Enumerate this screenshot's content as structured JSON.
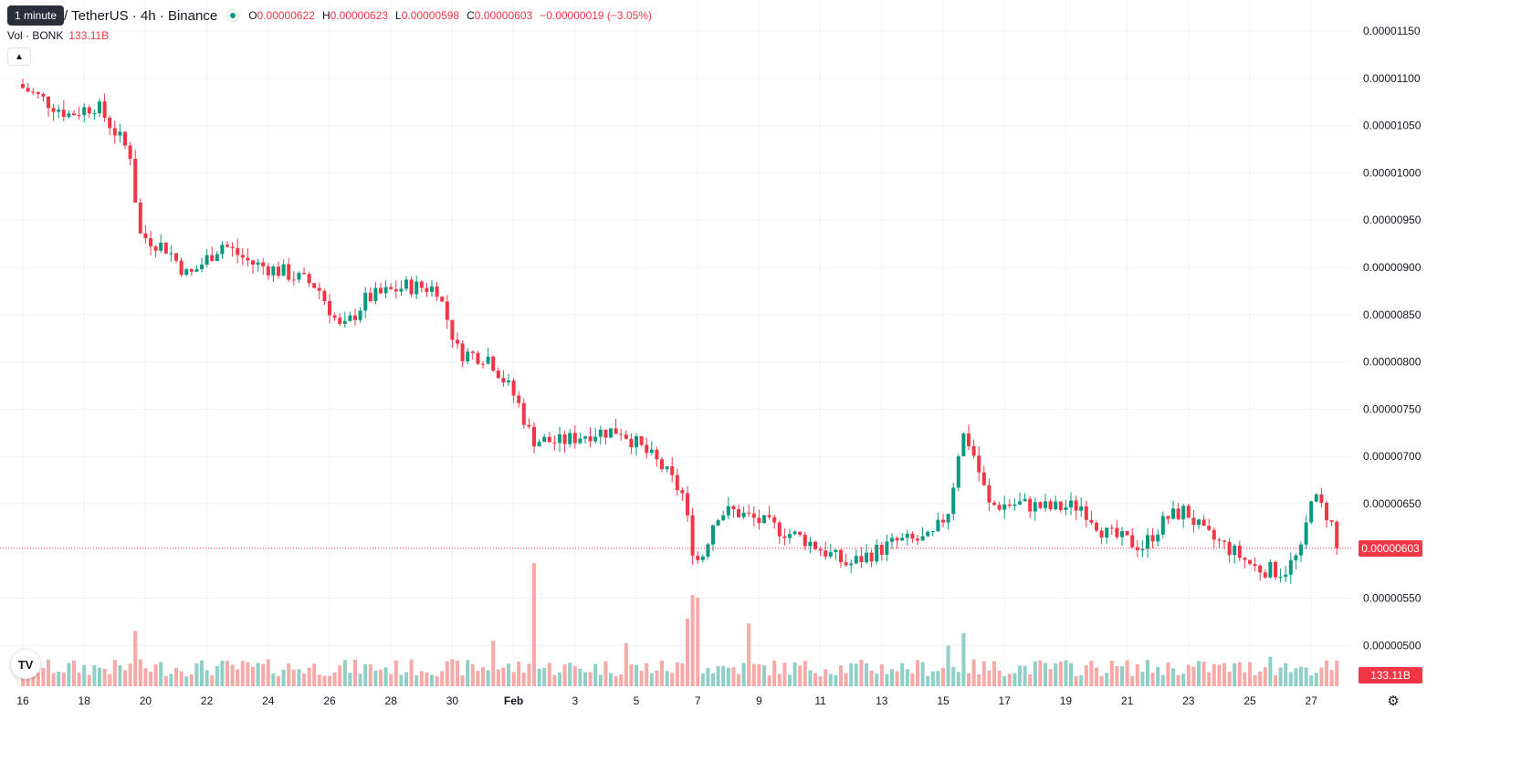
{
  "header": {
    "tooltip": "1 minute",
    "symbol": "/ TetherUS · 4h · Binance",
    "ohlc": [
      {
        "k": "O",
        "v": "0.00000622"
      },
      {
        "k": "H",
        "v": "0.00000623"
      },
      {
        "k": "L",
        "v": "0.00000598"
      },
      {
        "k": "C",
        "v": "0.00000603"
      },
      {
        "k": "",
        "v": "−0.00000019 (−3.05%)"
      }
    ],
    "volume_label": "Vol · BONK",
    "volume_value": "133.11B",
    "collapse_icon": "chevron-up-icon"
  },
  "price_axis": {
    "labels": [
      "0.00001150",
      "0.00001100",
      "0.00001050",
      "0.00001000",
      "0.00000950",
      "0.00000900",
      "0.00000850",
      "0.00000800",
      "0.00000750",
      "0.00000700",
      "0.00000650",
      "0.00000600",
      "0.00000550",
      "0.00000500"
    ]
  },
  "time_axis": {
    "labels": [
      "16",
      "18",
      "20",
      "22",
      "24",
      "26",
      "28",
      "30",
      "Feb",
      "3",
      "5",
      "7",
      "9",
      "11",
      "13",
      "15",
      "17",
      "19",
      "21",
      "23",
      "25",
      "27"
    ]
  },
  "last_price_tag": "0.00000603",
  "volume_tag": "133.11B",
  "icons": {
    "logo": "tradingview-logo-icon",
    "settings": "gear-icon"
  },
  "colors": {
    "up": "#089981",
    "down": "#f23645",
    "up_volume": "#8fcfc6",
    "down_volume": "#f7a9a7",
    "grid": "#f0f3fa"
  },
  "chart_data": {
    "type": "candlestick",
    "ylim": [
      4.7e-06,
      1.155e-05
    ],
    "x_labels": [
      "16",
      "18",
      "20",
      "22",
      "24",
      "26",
      "28",
      "30",
      "Feb",
      "3",
      "5",
      "7",
      "9",
      "11",
      "13",
      "15",
      "17",
      "19",
      "21",
      "23",
      "25",
      "27"
    ],
    "close_anchors": [
      [
        0,
        1.09e-05
      ],
      [
        1.5,
        1.062e-05
      ],
      [
        2.4,
        1.072e-05
      ],
      [
        3.5,
        1.02e-05
      ],
      [
        3.8,
        9.35e-06
      ],
      [
        4.7,
        9.2e-06
      ],
      [
        5.4,
        8.9e-06
      ],
      [
        6.5,
        9.25e-06
      ],
      [
        7.4,
        9.05e-06
      ],
      [
        8.5,
        8.95e-06
      ],
      [
        9.6,
        8.8e-06
      ],
      [
        10.4,
        8.32e-06
      ],
      [
        11.2,
        8.67e-06
      ],
      [
        12.5,
        8.8e-06
      ],
      [
        13.5,
        8.78e-06
      ],
      [
        14.2,
        8.1e-06
      ],
      [
        15.2,
        8.05e-06
      ],
      [
        16.1,
        7.6e-06
      ],
      [
        16.6,
        7.18e-06
      ],
      [
        17.5,
        7.15e-06
      ],
      [
        18.5,
        7.25e-06
      ],
      [
        19.5,
        7.28e-06
      ],
      [
        20.8,
        6.9e-06
      ],
      [
        21.5,
        6.6e-06
      ],
      [
        21.9,
        5.92e-06
      ],
      [
        22.1,
        5.9e-06
      ],
      [
        22.6,
        6.4e-06
      ],
      [
        23.2,
        6.42e-06
      ],
      [
        24.5,
        6.25e-06
      ],
      [
        25.5,
        6.12e-06
      ],
      [
        26.9,
        5.85e-06
      ],
      [
        27.5,
        5.95e-06
      ],
      [
        28.5,
        6.1e-06
      ],
      [
        29.6,
        6.12e-06
      ],
      [
        30.2,
        6.45e-06
      ],
      [
        30.6,
        7.25e-06
      ],
      [
        30.9,
        7.12e-06
      ],
      [
        31.5,
        6.48e-06
      ],
      [
        32.5,
        6.5e-06
      ],
      [
        33.5,
        6.45e-06
      ],
      [
        34.5,
        6.48e-06
      ],
      [
        35.3,
        6.18e-06
      ],
      [
        36.5,
        6.05e-06
      ],
      [
        37.3,
        6.35e-06
      ],
      [
        37.9,
        6.43e-06
      ],
      [
        38.5,
        6.18e-06
      ],
      [
        39.3,
        6.03e-06
      ],
      [
        40.2,
        5.82e-06
      ],
      [
        41.1,
        5.78e-06
      ],
      [
        41.7,
        6e-06
      ],
      [
        42.0,
        6.6e-06
      ],
      [
        42.6,
        6.35e-06
      ],
      [
        42.9,
        6.03e-06
      ]
    ],
    "volume_spikes": [
      [
        3.6,
        0.45
      ],
      [
        15.4,
        0.37
      ],
      [
        16.6,
        1.0
      ],
      [
        19.6,
        0.35
      ],
      [
        21.6,
        0.55
      ],
      [
        21.8,
        0.74
      ],
      [
        22.0,
        0.72
      ],
      [
        23.6,
        0.51
      ],
      [
        30.1,
        0.33
      ],
      [
        30.6,
        0.43
      ],
      [
        40.7,
        0.24
      ]
    ]
  }
}
